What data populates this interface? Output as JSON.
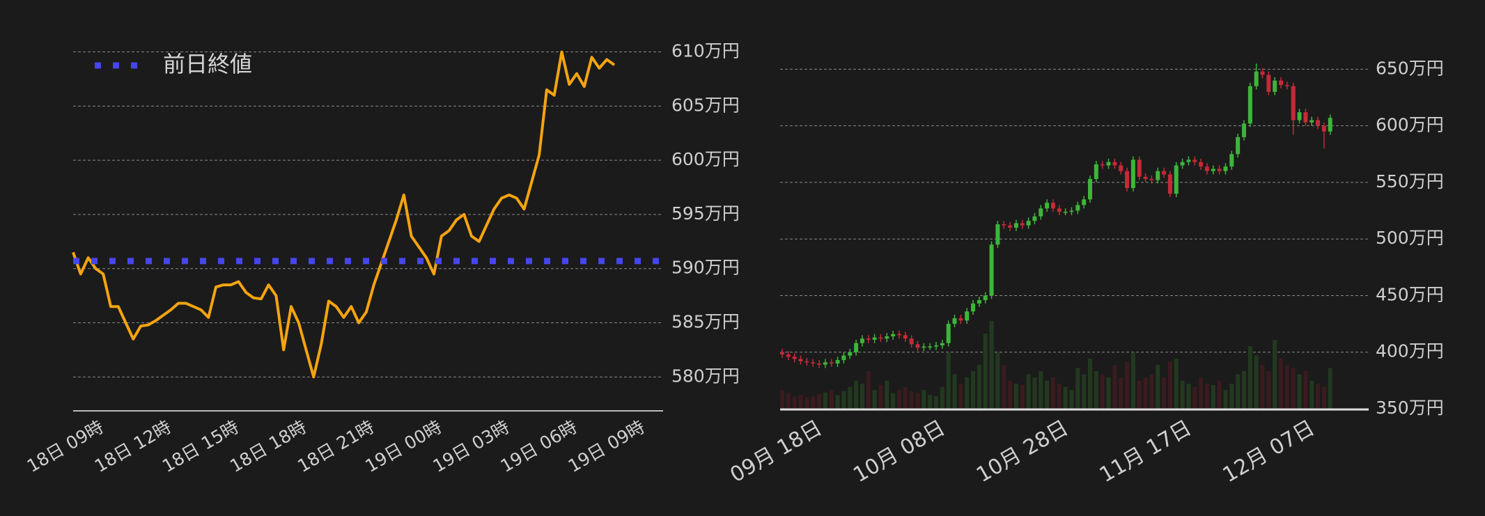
{
  "chart_data": [
    {
      "type": "line",
      "categories": [
        "18日 09時",
        null,
        null,
        null,
        null,
        null,
        null,
        null,
        null,
        "18日 12時",
        null,
        null,
        null,
        null,
        null,
        null,
        null,
        null,
        "18日 15時",
        null,
        null,
        null,
        null,
        null,
        null,
        null,
        null,
        "18日 18時",
        null,
        null,
        null,
        null,
        null,
        null,
        null,
        null,
        "18日 21時",
        null,
        null,
        null,
        null,
        null,
        null,
        null,
        null,
        "19日 00時",
        null,
        null,
        null,
        null,
        null,
        null,
        null,
        null,
        "19日 03時",
        null,
        null,
        null,
        null,
        null,
        null,
        null,
        null,
        "19日 06時",
        null,
        null,
        null,
        null,
        null,
        null,
        null,
        null,
        "19日 09時"
      ],
      "series": [
        {
          "color": "#f5a40f",
          "values": [
            591.5,
            589.5,
            591.0,
            590.0,
            589.5,
            586.5,
            586.5,
            585.0,
            583.5,
            584.7,
            584.8,
            585.2,
            585.7,
            586.2,
            586.8,
            586.8,
            586.5,
            586.2,
            585.5,
            588.3,
            588.5,
            588.5,
            588.8,
            587.8,
            587.3,
            587.2,
            588.5,
            587.5,
            582.5,
            586.5,
            585.0,
            582.5,
            580.0,
            583.0,
            587.0,
            586.5,
            585.5,
            586.5,
            585.0,
            586.0,
            588.5,
            590.5,
            592.5,
            594.5,
            596.8,
            593.0,
            592.0,
            591.0,
            589.5,
            593.0,
            593.5,
            594.5,
            595.0,
            593.0,
            592.5,
            594.0,
            595.5,
            596.5,
            596.8,
            596.5,
            595.5,
            598.0,
            600.5,
            606.5,
            606.0,
            610.0,
            607.0,
            608.0,
            606.8,
            609.5,
            608.5,
            609.3,
            608.8
          ]
        }
      ],
      "hlines": [
        {
          "name": "前日終値",
          "value": 590.7,
          "color": "#4646ec"
        }
      ],
      "ylim": [
        577,
        611
      ],
      "yticks": [
        {
          "value": 580,
          "label": "580万円"
        },
        {
          "value": 585,
          "label": "585万円"
        },
        {
          "value": 590,
          "label": "590万円"
        },
        {
          "value": 595,
          "label": "595万円"
        },
        {
          "value": 600,
          "label": "600万円"
        },
        {
          "value": 605,
          "label": "605万円"
        },
        {
          "value": 610,
          "label": "610万円"
        }
      ],
      "grid": true
    },
    {
      "type": "candlestick",
      "categories": [
        "09月 18日",
        null,
        null,
        null,
        null,
        null,
        null,
        null,
        null,
        null,
        null,
        null,
        null,
        null,
        null,
        null,
        null,
        null,
        null,
        null,
        "10月 08日",
        null,
        null,
        null,
        null,
        null,
        null,
        null,
        null,
        null,
        null,
        null,
        null,
        null,
        null,
        null,
        null,
        null,
        null,
        null,
        "10月 28日",
        null,
        null,
        null,
        null,
        null,
        null,
        null,
        null,
        null,
        null,
        null,
        null,
        null,
        null,
        null,
        null,
        null,
        null,
        null,
        "11月 17日",
        null,
        null,
        null,
        null,
        null,
        null,
        null,
        null,
        null,
        null,
        null,
        null,
        null,
        null,
        null,
        null,
        null,
        null,
        null,
        "12月 07日",
        null,
        null,
        null,
        null,
        null,
        null,
        null,
        null,
        null
      ],
      "open": [
        400,
        398,
        396,
        394,
        392,
        391,
        390,
        389,
        391,
        390,
        393,
        397,
        400,
        408,
        412,
        411,
        413,
        412,
        414,
        416,
        415,
        412,
        407,
        404,
        405,
        405,
        406,
        408,
        425,
        430,
        428,
        436,
        443,
        446,
        450,
        495,
        513,
        512,
        510,
        514,
        512,
        516,
        520,
        527,
        532,
        527,
        524,
        524,
        525,
        530,
        535,
        553,
        566,
        565,
        568,
        565,
        560,
        545,
        570,
        555,
        553,
        552,
        560,
        557,
        540,
        565,
        568,
        570,
        568,
        564,
        560,
        562,
        560,
        564,
        575,
        590,
        602,
        635,
        648,
        645,
        630,
        640,
        636,
        635,
        605,
        612,
        603,
        605,
        600,
        595
      ],
      "high": [
        403,
        401,
        399,
        397,
        395,
        394,
        393,
        394,
        394,
        396,
        400,
        403,
        411,
        415,
        415,
        416,
        416,
        417,
        419,
        419,
        418,
        415,
        410,
        408,
        408,
        409,
        411,
        428,
        433,
        433,
        439,
        446,
        449,
        453,
        498,
        516,
        516,
        515,
        517,
        517,
        519,
        523,
        530,
        535,
        535,
        530,
        527,
        528,
        533,
        538,
        556,
        569,
        569,
        571,
        571,
        568,
        563,
        573,
        573,
        558,
        556,
        563,
        563,
        560,
        568,
        571,
        573,
        573,
        571,
        567,
        565,
        565,
        567,
        578,
        593,
        605,
        638,
        655,
        651,
        648,
        643,
        643,
        639,
        638,
        615,
        615,
        608,
        608,
        603,
        610
      ],
      "low": [
        395,
        393,
        391,
        389,
        388,
        387,
        386,
        386,
        387,
        387,
        390,
        394,
        397,
        405,
        408,
        408,
        409,
        409,
        411,
        412,
        409,
        404,
        401,
        401,
        402,
        402,
        403,
        405,
        422,
        425,
        425,
        433,
        440,
        443,
        447,
        492,
        509,
        507,
        507,
        509,
        509,
        513,
        517,
        524,
        524,
        521,
        521,
        521,
        522,
        527,
        532,
        550,
        562,
        562,
        562,
        557,
        542,
        542,
        552,
        550,
        549,
        549,
        554,
        537,
        537,
        562,
        565,
        565,
        561,
        557,
        557,
        557,
        557,
        561,
        572,
        587,
        599,
        632,
        642,
        627,
        627,
        633,
        632,
        592,
        602,
        600,
        600,
        597,
        580,
        592
      ],
      "close": [
        398,
        396,
        394,
        392,
        391,
        390,
        389,
        391,
        390,
        393,
        397,
        400,
        408,
        412,
        411,
        413,
        412,
        414,
        416,
        415,
        412,
        407,
        404,
        405,
        405,
        406,
        408,
        425,
        430,
        428,
        436,
        443,
        446,
        450,
        495,
        513,
        512,
        510,
        514,
        512,
        516,
        520,
        527,
        532,
        527,
        524,
        524,
        525,
        530,
        535,
        553,
        566,
        565,
        568,
        565,
        560,
        545,
        570,
        555,
        553,
        552,
        560,
        557,
        540,
        565,
        568,
        570,
        568,
        564,
        560,
        562,
        560,
        564,
        575,
        590,
        602,
        635,
        648,
        645,
        630,
        640,
        636,
        635,
        605,
        612,
        603,
        605,
        600,
        595,
        607
      ],
      "volume": [
        30,
        25,
        20,
        22,
        18,
        20,
        24,
        26,
        30,
        22,
        28,
        35,
        45,
        40,
        60,
        30,
        38,
        45,
        25,
        30,
        35,
        28,
        25,
        30,
        22,
        20,
        35,
        90,
        55,
        40,
        50,
        60,
        70,
        120,
        140,
        90,
        70,
        45,
        40,
        38,
        55,
        50,
        60,
        45,
        50,
        40,
        35,
        30,
        65,
        55,
        80,
        60,
        55,
        50,
        70,
        50,
        75,
        90,
        45,
        50,
        55,
        70,
        50,
        75,
        80,
        45,
        40,
        35,
        50,
        40,
        38,
        45,
        30,
        40,
        55,
        60,
        100,
        85,
        70,
        60,
        110,
        80,
        70,
        65,
        55,
        60,
        45,
        40,
        35,
        65
      ],
      "up_color": "#3db53a",
      "down_color": "#c42a38",
      "volume_up_color": "#22391f",
      "volume_down_color": "#3a1b1e",
      "ylim": [
        350,
        657
      ],
      "yticks": [
        {
          "value": 350,
          "label": "350万円"
        },
        {
          "value": 400,
          "label": "400万円"
        },
        {
          "value": 450,
          "label": "450万円"
        },
        {
          "value": 500,
          "label": "500万円"
        },
        {
          "value": 550,
          "label": "550万円"
        },
        {
          "value": 600,
          "label": "600万円"
        },
        {
          "value": 650,
          "label": "650万円"
        }
      ],
      "grid": true
    }
  ]
}
